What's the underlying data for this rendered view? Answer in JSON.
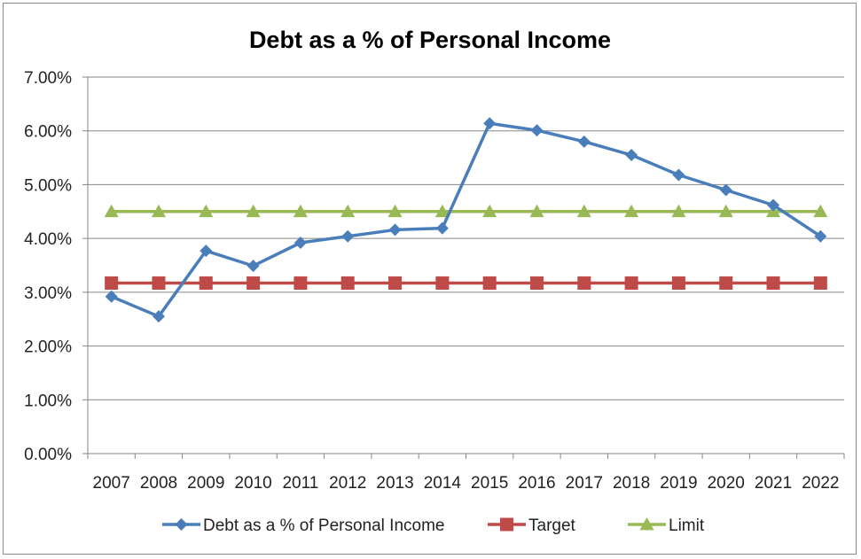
{
  "chart_data": {
    "type": "line",
    "title": "Debt as a % of Personal Income",
    "xlabel": "",
    "ylabel": "",
    "categories": [
      "2007",
      "2008",
      "2009",
      "2010",
      "2011",
      "2012",
      "2013",
      "2014",
      "2015",
      "2016",
      "2017",
      "2018",
      "2019",
      "2020",
      "2021",
      "2022"
    ],
    "y_ticks": [
      "0.00%",
      "1.00%",
      "2.00%",
      "3.00%",
      "4.00%",
      "5.00%",
      "6.00%",
      "7.00%"
    ],
    "ylim": [
      0,
      0.07
    ],
    "grid": true,
    "legend_position": "bottom",
    "series": [
      {
        "name": "Debt as a % of Personal Income",
        "color": "#4a7ebb",
        "marker": "diamond",
        "values": [
          0.0292,
          0.0255,
          0.0377,
          0.0349,
          0.0392,
          0.0404,
          0.0416,
          0.0419,
          0.0614,
          0.0601,
          0.058,
          0.0555,
          0.0518,
          0.049,
          0.0462,
          0.0404
        ]
      },
      {
        "name": "Target",
        "color": "#be4b48",
        "marker": "square",
        "values": [
          0.0317,
          0.0317,
          0.0317,
          0.0317,
          0.0317,
          0.0317,
          0.0317,
          0.0317,
          0.0317,
          0.0317,
          0.0317,
          0.0317,
          0.0317,
          0.0317,
          0.0317,
          0.0317
        ]
      },
      {
        "name": "Limit",
        "color": "#98b954",
        "marker": "triangle",
        "values": [
          0.045,
          0.045,
          0.045,
          0.045,
          0.045,
          0.045,
          0.045,
          0.045,
          0.045,
          0.045,
          0.045,
          0.045,
          0.045,
          0.045,
          0.045,
          0.045
        ]
      }
    ]
  }
}
